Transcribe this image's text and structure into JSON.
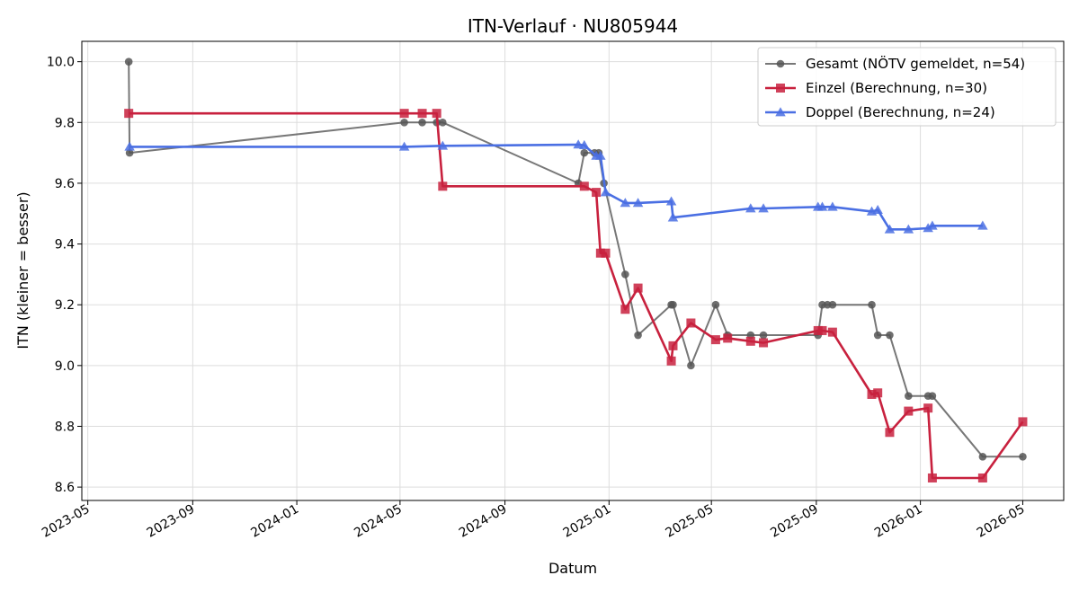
{
  "chart_data": {
    "type": "line",
    "title": "ITN-Verlauf · NU805944",
    "xlabel": "Datum",
    "ylabel": "ITN  (kleiner = besser)",
    "x_ticks": [
      "2023-05",
      "2023-09",
      "2024-01",
      "2024-05",
      "2024-09",
      "2025-01",
      "2025-05",
      "2025-09",
      "2026-01",
      "2026-05"
    ],
    "y_ticks": [
      8.6,
      8.8,
      9.0,
      9.2,
      9.4,
      9.6,
      9.8,
      10.0
    ],
    "xlim": [
      "2023-04-24",
      "2026-06-18"
    ],
    "ylim": [
      8.556,
      10.067
    ],
    "grid": true,
    "legend_position": "top-right",
    "series": [
      {
        "name": "Gesamt (NÖTV gemeldet, n=54)",
        "color": "#555555",
        "marker": "circle",
        "points": [
          [
            "2023-06-18",
            10.0
          ],
          [
            "2023-06-19",
            9.7
          ],
          [
            "2024-05-06",
            9.8
          ],
          [
            "2024-05-27",
            9.8
          ],
          [
            "2024-06-13",
            9.8
          ],
          [
            "2024-06-20",
            9.8
          ],
          [
            "2024-11-26",
            9.6
          ],
          [
            "2024-12-03",
            9.7
          ],
          [
            "2024-12-15",
            9.7
          ],
          [
            "2024-12-20",
            9.7
          ],
          [
            "2024-12-26",
            9.6
          ],
          [
            "2025-01-20",
            9.3
          ],
          [
            "2025-02-04",
            9.1
          ],
          [
            "2025-03-15",
            9.2
          ],
          [
            "2025-03-17",
            9.2
          ],
          [
            "2025-04-07",
            9.0
          ],
          [
            "2025-05-06",
            9.2
          ],
          [
            "2025-05-20",
            9.1
          ],
          [
            "2025-06-16",
            9.1
          ],
          [
            "2025-07-01",
            9.1
          ],
          [
            "2025-09-03",
            9.1
          ],
          [
            "2025-09-08",
            9.2
          ],
          [
            "2025-09-14",
            9.2
          ],
          [
            "2025-09-20",
            9.2
          ],
          [
            "2025-11-05",
            9.2
          ],
          [
            "2025-11-12",
            9.1
          ],
          [
            "2025-11-26",
            9.1
          ],
          [
            "2025-12-18",
            8.9
          ],
          [
            "2026-01-10",
            8.9
          ],
          [
            "2026-01-15",
            8.9
          ],
          [
            "2026-03-15",
            8.7
          ],
          [
            "2026-05-01",
            8.7
          ]
        ]
      },
      {
        "name": "Einzel (Berechnung, n=30)",
        "color": "#C8213E",
        "marker": "square",
        "points": [
          [
            "2023-06-18",
            9.83
          ],
          [
            "2024-05-06",
            9.83
          ],
          [
            "2024-05-27",
            9.83
          ],
          [
            "2024-06-13",
            9.83
          ],
          [
            "2024-06-20",
            9.59
          ],
          [
            "2024-12-03",
            9.59
          ],
          [
            "2024-12-17",
            9.57
          ],
          [
            "2024-12-22",
            9.37
          ],
          [
            "2024-12-28",
            9.37
          ],
          [
            "2025-01-20",
            9.185
          ],
          [
            "2025-02-04",
            9.255
          ],
          [
            "2025-03-15",
            9.015
          ],
          [
            "2025-03-17",
            9.065
          ],
          [
            "2025-04-07",
            9.14
          ],
          [
            "2025-05-06",
            9.085
          ],
          [
            "2025-05-20",
            9.09
          ],
          [
            "2025-06-16",
            9.08
          ],
          [
            "2025-07-01",
            9.075
          ],
          [
            "2025-09-03",
            9.115
          ],
          [
            "2025-09-08",
            9.115
          ],
          [
            "2025-09-20",
            9.11
          ],
          [
            "2025-11-05",
            8.905
          ],
          [
            "2025-11-12",
            8.91
          ],
          [
            "2025-11-26",
            8.78
          ],
          [
            "2025-12-18",
            8.85
          ],
          [
            "2026-01-10",
            8.86
          ],
          [
            "2026-01-15",
            8.63
          ],
          [
            "2026-03-15",
            8.63
          ],
          [
            "2026-05-01",
            8.815
          ]
        ]
      },
      {
        "name": "Doppel (Berechnung, n=24)",
        "color": "#4A6FE3",
        "marker": "triangle",
        "points": [
          [
            "2023-06-19",
            9.72
          ],
          [
            "2024-05-06",
            9.72
          ],
          [
            "2024-06-20",
            9.723
          ],
          [
            "2024-11-26",
            9.727
          ],
          [
            "2024-12-03",
            9.725
          ],
          [
            "2024-12-17",
            9.69
          ],
          [
            "2024-12-22",
            9.69
          ],
          [
            "2024-12-28",
            9.57
          ],
          [
            "2025-01-20",
            9.535
          ],
          [
            "2025-02-04",
            9.535
          ],
          [
            "2025-03-15",
            9.54
          ],
          [
            "2025-03-17",
            9.487
          ],
          [
            "2025-06-16",
            9.517
          ],
          [
            "2025-07-01",
            9.517
          ],
          [
            "2025-09-03",
            9.522
          ],
          [
            "2025-09-08",
            9.522
          ],
          [
            "2025-09-20",
            9.522
          ],
          [
            "2025-11-05",
            9.507
          ],
          [
            "2025-11-12",
            9.512
          ],
          [
            "2025-11-26",
            9.448
          ],
          [
            "2025-12-18",
            9.448
          ],
          [
            "2026-01-10",
            9.452
          ],
          [
            "2026-01-15",
            9.46
          ],
          [
            "2026-03-15",
            9.46
          ]
        ]
      }
    ]
  }
}
